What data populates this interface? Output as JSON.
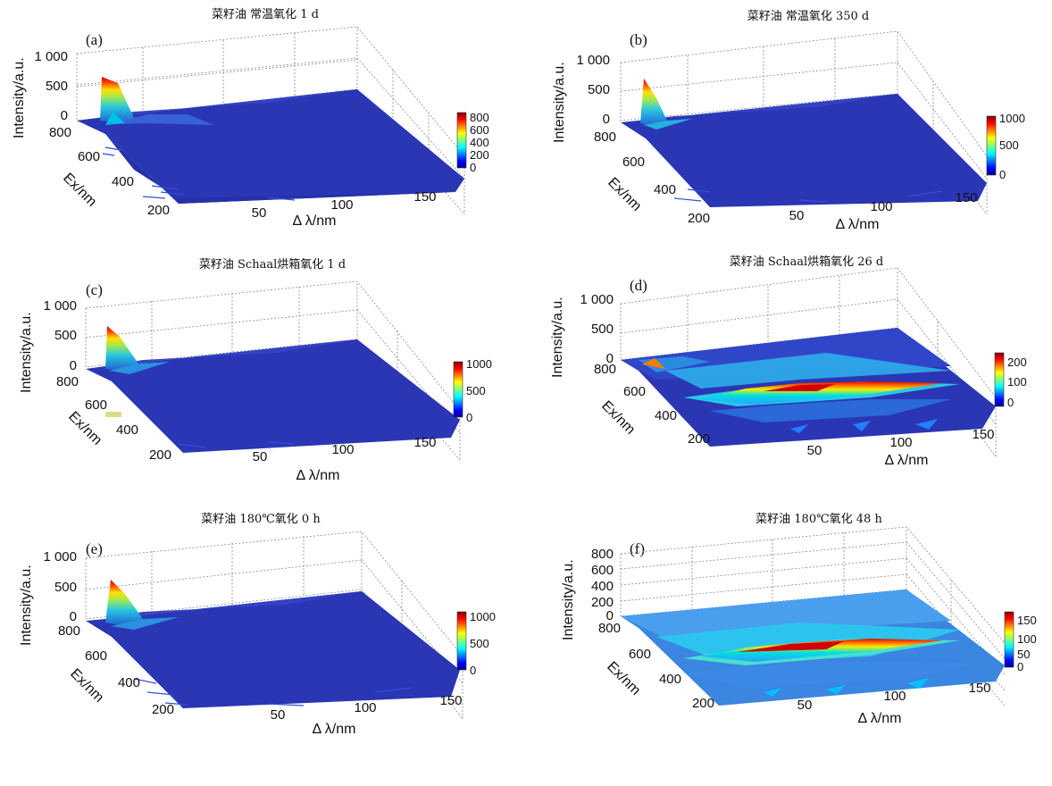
{
  "figure": {
    "panels": [
      {
        "id": "a",
        "letter": "(a)",
        "title": "菜籽油 常温氧化 1 d",
        "zticks": [
          "1 000",
          "500",
          "0"
        ],
        "xticks": [
          "50",
          "100",
          "150"
        ],
        "yticks": [
          "800",
          "600",
          "400",
          "200"
        ],
        "cbticks": [
          "800",
          "600",
          "400",
          "200",
          "0"
        ],
        "zlabel": "Intensity/a.u.",
        "xlabel": "Δ λ/nm",
        "ylabel": "Ex/nm"
      },
      {
        "id": "b",
        "letter": "(b)",
        "title": "菜籽油 常温氧化 350 d",
        "zticks": [
          "1 000",
          "500",
          "0"
        ],
        "xticks": [
          "50",
          "100",
          "150"
        ],
        "yticks": [
          "800",
          "600",
          "400",
          "200"
        ],
        "cbticks": [
          "1000",
          "500",
          "0"
        ],
        "zlabel": "Intensity/a.u.",
        "xlabel": "Δ λ/nm",
        "ylabel": "Ex/nm"
      },
      {
        "id": "c",
        "letter": "(c)",
        "title": "菜籽油  Schaal烘箱氧化 1 d",
        "zticks": [
          "1 000",
          "500",
          "0"
        ],
        "xticks": [
          "50",
          "100",
          "150"
        ],
        "yticks": [
          "800",
          "600",
          "400",
          "200"
        ],
        "cbticks": [
          "1000",
          "500",
          "0"
        ],
        "zlabel": "Intensity/a.u.",
        "xlabel": "Δ λ/nm",
        "ylabel": "Ex/nm"
      },
      {
        "id": "d",
        "letter": "(d)",
        "title": "菜籽油 Schaal烘箱氧化 26 d",
        "zticks": [
          "1 000",
          "500",
          "0"
        ],
        "xticks": [
          "50",
          "100",
          "150"
        ],
        "yticks": [
          "800",
          "600",
          "400",
          "200"
        ],
        "cbticks": [
          "200",
          "100",
          "0"
        ],
        "zlabel": "Intensity/a.u.",
        "xlabel": "Δ λ/nm",
        "ylabel": "Ex/nm"
      },
      {
        "id": "e",
        "letter": "(e)",
        "title": "菜籽油 180℃氧化 0 h",
        "zticks": [
          "1 000",
          "500",
          "0"
        ],
        "xticks": [
          "50",
          "100",
          "150"
        ],
        "yticks": [
          "800",
          "600",
          "400",
          "200"
        ],
        "cbticks": [
          "1000",
          "500",
          "0"
        ],
        "zlabel": "Intensity/a.u.",
        "xlabel": "Δ λ/nm",
        "ylabel": "Ex/nm"
      },
      {
        "id": "f",
        "letter": "(f)",
        "title": "菜籽油 180℃氧化 48 h",
        "zticks": [
          "800",
          "600",
          "400",
          "200",
          "0"
        ],
        "xticks": [
          "50",
          "100",
          "150"
        ],
        "yticks": [
          "800",
          "600",
          "400",
          "200"
        ],
        "cbticks": [
          "150",
          "100",
          "50",
          "0"
        ],
        "zlabel": "Intensity/a.u.",
        "xlabel": "Δ λ/nm",
        "ylabel": "Ex/nm"
      }
    ]
  },
  "chart_data": [
    {
      "panel": "a",
      "type": "surface",
      "title": "菜籽油 常温氧化 1 d",
      "xlabel": "Δ λ/nm",
      "ylabel": "Ex/nm",
      "zlabel": "Intensity/a.u.",
      "xlim": [
        0,
        180
      ],
      "ylim": [
        200,
        800
      ],
      "zlim": [
        0,
        1000
      ],
      "clim": [
        0,
        800
      ],
      "peaks": [
        {
          "x": 15,
          "y": 800,
          "z": 620,
          "note": "sharp peak at high Ex, low Δλ"
        }
      ],
      "baseline": 0
    },
    {
      "panel": "b",
      "type": "surface",
      "title": "菜籽油 常温氧化 350 d",
      "xlabel": "Δ λ/nm",
      "ylabel": "Ex/nm",
      "zlabel": "Intensity/a.u.",
      "xlim": [
        0,
        180
      ],
      "ylim": [
        200,
        800
      ],
      "zlim": [
        0,
        1000
      ],
      "clim": [
        0,
        1000
      ],
      "peaks": [
        {
          "x": 15,
          "y": 800,
          "z": 950
        }
      ],
      "baseline": 0
    },
    {
      "panel": "c",
      "type": "surface",
      "title": "菜籽油  Schaal烘箱氧化 1 d",
      "xlabel": "Δ λ/nm",
      "ylabel": "Ex/nm",
      "zlabel": "Intensity/a.u.",
      "xlim": [
        0,
        180
      ],
      "ylim": [
        200,
        800
      ],
      "zlim": [
        0,
        1000
      ],
      "clim": [
        0,
        1000
      ],
      "peaks": [
        {
          "x": 15,
          "y": 800,
          "z": 900
        }
      ],
      "baseline": 0
    },
    {
      "panel": "d",
      "type": "surface",
      "title": "菜籽油 Schaal烘箱氧化 26 d",
      "xlabel": "Δ λ/nm",
      "ylabel": "Ex/nm",
      "zlabel": "Intensity/a.u.",
      "xlim": [
        0,
        180
      ],
      "ylim": [
        200,
        800
      ],
      "zlim": [
        0,
        1000
      ],
      "clim": [
        0,
        250
      ],
      "peaks": [
        {
          "x": 15,
          "y": 800,
          "z": 120
        },
        {
          "x": 70,
          "y": 400,
          "z": 230,
          "note": "broad ridge"
        }
      ],
      "baseline": 0
    },
    {
      "panel": "e",
      "type": "surface",
      "title": "菜籽油 180℃氧化 0 h",
      "xlabel": "Δ λ/nm",
      "ylabel": "Ex/nm",
      "zlabel": "Intensity/a.u.",
      "xlim": [
        0,
        180
      ],
      "ylim": [
        200,
        800
      ],
      "zlim": [
        0,
        1000
      ],
      "clim": [
        0,
        1000
      ],
      "peaks": [
        {
          "x": 15,
          "y": 800,
          "z": 880
        }
      ],
      "baseline": 0
    },
    {
      "panel": "f",
      "type": "surface",
      "title": "菜籽油 180℃氧化 48 h",
      "xlabel": "Δ λ/nm",
      "ylabel": "Ex/nm",
      "zlabel": "Intensity/a.u.",
      "xlim": [
        0,
        180
      ],
      "ylim": [
        200,
        800
      ],
      "zlim": [
        0,
        800
      ],
      "clim": [
        0,
        170
      ],
      "peaks": [
        {
          "x": 70,
          "y": 400,
          "z": 165,
          "note": "broad ridge"
        }
      ],
      "baseline": 40
    }
  ]
}
